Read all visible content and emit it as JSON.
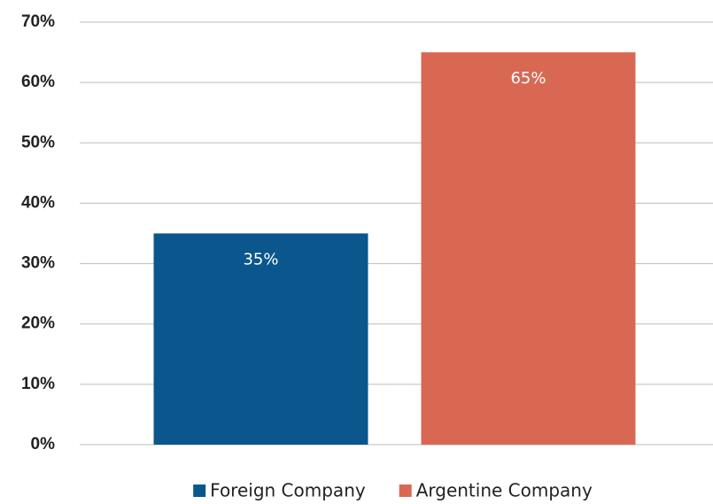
{
  "chart_data": {
    "type": "bar",
    "categories": [
      null
    ],
    "series": [
      {
        "name": "Foreign Company",
        "color": "#0b568c",
        "values": [
          35
        ],
        "value_labels": [
          "35%"
        ]
      },
      {
        "name": "Argentine Company",
        "color": "#d96853",
        "values": [
          65
        ],
        "value_labels": [
          "65%"
        ]
      }
    ],
    "ylim": [
      0,
      70
    ],
    "yticks": [
      {
        "value": 0,
        "label": "0%"
      },
      {
        "value": 10,
        "label": "10%"
      },
      {
        "value": 20,
        "label": "20%"
      },
      {
        "value": 30,
        "label": "30%"
      },
      {
        "value": 40,
        "label": "40%"
      },
      {
        "value": 50,
        "label": "50%"
      },
      {
        "value": 60,
        "label": "60%"
      },
      {
        "value": 70,
        "label": "70%"
      }
    ],
    "grid": true,
    "legend": "bottom"
  }
}
